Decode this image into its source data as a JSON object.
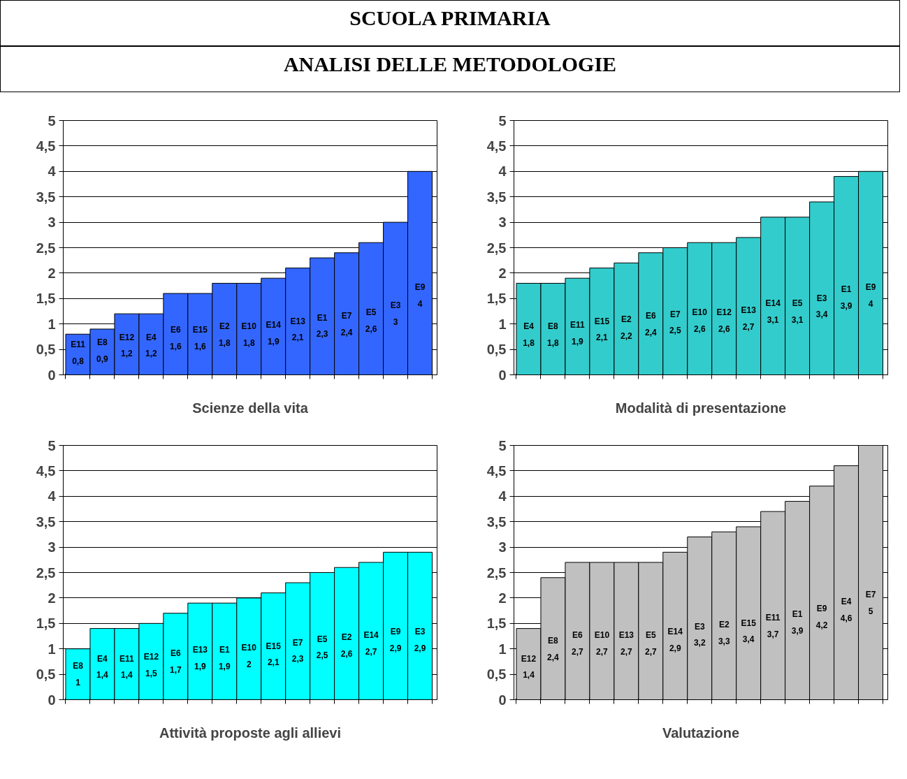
{
  "chart_data": [
    {
      "type": "bar",
      "title": "SCUOLA PRIMARIA",
      "subtitle": "ANALISI DELLE METODOLOGIE",
      "xlabel": "Scienze della vita",
      "categories": [
        "E11",
        "E8",
        "E12",
        "E4",
        "E6",
        "E15",
        "E2",
        "E10",
        "E14",
        "E13",
        "E1",
        "E7",
        "E5",
        "E3",
        "E9"
      ],
      "values": [
        0.8,
        0.9,
        1.2,
        1.2,
        1.6,
        1.6,
        1.8,
        1.8,
        1.9,
        2.1,
        2.3,
        2.4,
        2.6,
        3,
        4
      ],
      "value_labels": [
        "0,8",
        "0,9",
        "1,2",
        "1,2",
        "1,6",
        "1,6",
        "1,8",
        "1,8",
        "1,9",
        "2,1",
        "2,3",
        "2,4",
        "2,6",
        "3",
        "4"
      ],
      "color": "#3366ff",
      "ylim": [
        0,
        5
      ],
      "yticks": [
        0,
        {
          "value": 0.5,
          "label": "0,5"
        },
        1,
        {
          "value": 1.5,
          "label": "1,5"
        },
        2,
        {
          "value": 2.5,
          "label": "2,5"
        },
        3,
        {
          "value": 3.5,
          "label": "3,5"
        },
        4,
        {
          "value": 4.5,
          "label": "4,5"
        },
        5
      ],
      "grid": "y",
      "tick_labels": "y"
    },
    {
      "type": "bar",
      "xlabel": "Modalità di presentazione",
      "categories": [
        "E4",
        "E8",
        "E11",
        "E15",
        "E2",
        "E6",
        "E7",
        "E10",
        "E12",
        "E13",
        "E14",
        "E5",
        "E3",
        "E1",
        "E9"
      ],
      "values": [
        1.8,
        1.8,
        1.9,
        2.1,
        2.2,
        2.4,
        2.5,
        2.6,
        2.6,
        2.7,
        3.1,
        3.1,
        3.4,
        3.9,
        4
      ],
      "value_labels": [
        "1,8",
        "1,8",
        "1,9",
        "2,1",
        "2,2",
        "2,4",
        "2,5",
        "2,6",
        "2,6",
        "2,7",
        "3,1",
        "3,1",
        "3,4",
        "3,9",
        "4"
      ],
      "color": "#33cccc",
      "ylim": [
        0,
        5
      ],
      "yticks": [
        0,
        {
          "value": 0.5,
          "label": "0,5"
        },
        1,
        {
          "value": 1.5,
          "label": "1,5"
        },
        2,
        {
          "value": 2.5,
          "label": "2,5"
        },
        3,
        {
          "value": 3.5,
          "label": "3,5"
        },
        4,
        {
          "value": 4.5,
          "label": "4,5"
        },
        5
      ],
      "grid": "y",
      "tick_labels": "y"
    },
    {
      "type": "bar",
      "xlabel": "Attività proposte agli allievi",
      "categories": [
        "E8",
        "E4",
        "E11",
        "E12",
        "E6",
        "E13",
        "E1",
        "E10",
        "E15",
        "E7",
        "E5",
        "E2",
        "E14",
        "E9",
        "E3"
      ],
      "values": [
        1,
        1.4,
        1.4,
        1.5,
        1.7,
        1.9,
        1.9,
        2,
        2.1,
        2.3,
        2.5,
        2.6,
        2.7,
        2.9,
        2.9
      ],
      "value_labels": [
        "1",
        "1,4",
        "1,4",
        "1,5",
        "1,7",
        "1,9",
        "1,9",
        "2",
        "2,1",
        "2,3",
        "2,5",
        "2,6",
        "2,7",
        "2,9",
        "2,9"
      ],
      "color": "#00ffff",
      "ylim": [
        0,
        5
      ],
      "yticks": [
        0,
        {
          "value": 0.5,
          "label": "0,5"
        },
        1,
        {
          "value": 1.5,
          "label": "1,5"
        },
        2,
        {
          "value": 2.5,
          "label": "2,5"
        },
        3,
        {
          "value": 3.5,
          "label": "3,5"
        },
        4,
        {
          "value": 4.5,
          "label": "4,5"
        },
        5
      ],
      "grid": "y",
      "tick_labels": "y"
    },
    {
      "type": "bar",
      "xlabel": "Valutazione",
      "categories": [
        "E12",
        "E8",
        "E6",
        "E10",
        "E13",
        "E5",
        "E14",
        "E3",
        "E2",
        "E15",
        "E11",
        "E1",
        "E9",
        "E4",
        "E7"
      ],
      "values": [
        1.4,
        2.4,
        2.7,
        2.7,
        2.7,
        2.7,
        2.9,
        3.2,
        3.3,
        3.4,
        3.7,
        3.9,
        4.2,
        4.6,
        5
      ],
      "value_labels": [
        "1,4",
        "2,4",
        "2,7",
        "2,7",
        "2,7",
        "2,7",
        "2,9",
        "3,2",
        "3,3",
        "3,4",
        "3,7",
        "3,9",
        "4,2",
        "4,6",
        "5"
      ],
      "color": "#c0c0c0",
      "ylim": [
        0,
        5
      ],
      "yticks": [
        0,
        {
          "value": 0.5,
          "label": "0,5"
        },
        1,
        {
          "value": 1.5,
          "label": "1,5"
        },
        2,
        {
          "value": 2.5,
          "label": "2,5"
        },
        3,
        {
          "value": 3.5,
          "label": "3,5"
        },
        4,
        {
          "value": 4.5,
          "label": "4,5"
        },
        5
      ],
      "grid": "y",
      "tick_labels": "y"
    }
  ]
}
